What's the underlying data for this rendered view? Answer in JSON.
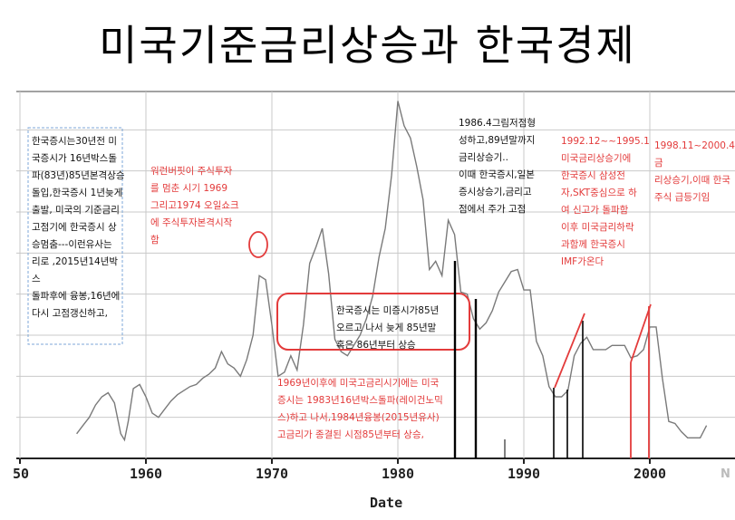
{
  "title": "미국기준금리상승과 한국경제",
  "chart_data": {
    "type": "line",
    "x_ticks": [
      "50",
      "1960",
      "1970",
      "1980",
      "1990",
      "2000"
    ],
    "xlabel": "Date",
    "series": [
      {
        "x": [
          1954.5,
          1955,
          1955.5,
          1956,
          1956.5,
          1957,
          1957.5,
          1958,
          1958.3,
          1958.6,
          1959,
          1959.5,
          1960,
          1960.5,
          1961,
          1961.5,
          1962,
          1962.5,
          1963,
          1963.5,
          1964,
          1964.5,
          1965,
          1965.5,
          1966,
          1966.5,
          1967,
          1967.5,
          1968,
          1968.5,
          1969,
          1969.5,
          1970,
          1970.5,
          1971,
          1971.5,
          1972,
          1972.5,
          1973,
          1973.5,
          1974,
          1974.5,
          1975,
          1975.5,
          1976,
          1976.5,
          1977,
          1977.5,
          1978,
          1978.5,
          1979,
          1979.5,
          1980,
          1980.5,
          1981,
          1981.5,
          1982,
          1982.5,
          1983,
          1983.5,
          1984,
          1984.5,
          1985,
          1985.5,
          1986,
          1986.5,
          1987,
          1987.5,
          1988,
          1988.5,
          1989,
          1989.5,
          1990,
          1990.5,
          1991,
          1991.5,
          1992,
          1992.5,
          1993,
          1993.5,
          1994,
          1994.5,
          1995,
          1995.5,
          1996,
          1996.5,
          1997,
          1997.5,
          1998,
          1998.5,
          1999,
          1999.5,
          2000,
          2000.5,
          2001,
          2001.5,
          2002,
          2002.5,
          2003,
          2003.5,
          2004,
          2004.5
        ],
        "y": [
          1.2,
          1.6,
          2.0,
          2.6,
          3.0,
          3.2,
          2.7,
          1.2,
          0.9,
          1.8,
          3.4,
          3.6,
          3.0,
          2.2,
          2.0,
          2.4,
          2.8,
          3.1,
          3.3,
          3.5,
          3.6,
          3.9,
          4.1,
          4.4,
          5.2,
          4.6,
          4.4,
          4.0,
          4.8,
          6.0,
          8.9,
          8.7,
          6.5,
          4.0,
          4.2,
          5.0,
          4.3,
          6.5,
          9.5,
          10.3,
          11.2,
          9.0,
          5.8,
          5.2,
          5.0,
          5.5,
          6.0,
          6.8,
          7.9,
          9.8,
          11.2,
          13.8,
          17.4,
          16.2,
          15.6,
          14.2,
          12.6,
          9.2,
          9.6,
          8.9,
          11.6,
          10.9,
          8.1,
          8.0,
          6.8,
          6.3,
          6.6,
          7.2,
          8.1,
          8.6,
          9.1,
          9.2,
          8.2,
          8.2,
          5.7,
          5.0,
          3.5,
          3.0,
          3.0,
          3.3,
          5.0,
          5.6,
          5.9,
          5.3,
          5.3,
          5.3,
          5.5,
          5.5,
          5.5,
          4.9,
          5.0,
          5.3,
          6.4,
          6.4,
          3.9,
          1.8,
          1.7,
          1.3,
          1.0,
          1.0,
          1.0,
          1.6
        ]
      }
    ],
    "ylim": [
      0,
      18
    ]
  },
  "annotations": {
    "box1": [
      "한국증시는30년전 미",
      "국증시가 16년박스돌",
      "파(83년)85년본격상승",
      "돌입,한국증시 1년늦게",
      "출발, 미국의 기준금리",
      "고점기에 한국증시 상",
      "승멈춤---이런유사는",
      "리로 ,2015년14년박스",
      "돌파후에 융봉,16년에",
      "다시 고점갱신하고,"
    ],
    "box2": [
      "워런버핏이 주식투자",
      "를 멈춘 시기 1969",
      "그리고1974 오일쇼크",
      "에 주식투자본격시작",
      "함"
    ],
    "box3": [
      "1986.4그림저점형",
      "성하고,89년말까지",
      "금리상승기..",
      "이때 한국증시,일본",
      "증시상승기,금리고",
      "점에서 주가 고점"
    ],
    "box4": [
      "1992.12~~1995.1",
      "미국금리상승기에",
      "한국증시 삼성전",
      "자,SKT중심으로 하",
      "여 신고가 돌파함",
      "이후 미국금리하락",
      "과함께 한국증시",
      "IMF가온다"
    ],
    "box5": [
      "1998.11~2000.4금",
      "리상승기,이때 한국",
      "주식 급등기임"
    ],
    "box6": [
      "한국증시는 미증시가85년",
      "오르고 나서 늦게 85년말",
      "혹은 86년부터 상승"
    ],
    "box7": [
      "1969년이후에 미국고금리시기에는 미국",
      "증시는 1983년16년박스돌파(레이건노믹",
      "스)하고 나서,1984년융봉(2015년유사)",
      "고금리가 종결된 시점85년부터 상승,"
    ]
  },
  "colors": {
    "annotation_red": "#e33b3b",
    "line": "#7a7a7a",
    "grid": "#c9c9c9"
  },
  "watermark": "N"
}
